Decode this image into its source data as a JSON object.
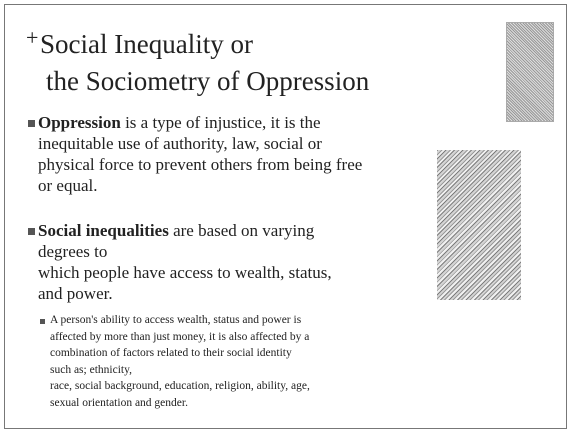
{
  "slide": {
    "marker": "+",
    "title_lines": [
      "Social Inequality or",
      "the Sociometry of Oppression"
    ],
    "bullets": [
      {
        "bold": "Oppression",
        "lines": [
          " is a type of injustice, it is the",
          "inequitable use of authority, law, social or",
          "physical force to prevent others from being free",
          "or equal."
        ]
      },
      {
        "bold": "Social inequalities",
        "lines": [
          " are based on varying",
          "degrees to",
          "which people have access to wealth, status,",
          "and power."
        ]
      }
    ],
    "sub_bullet_lines": [
      "A person's ability to access wealth, status and power is",
      "affected by more than just money, it is also affected by a",
      "combination of factors related to their social identity",
      "such as; ethnicity,",
      "race, social background, education, religion, ability, age,",
      "sexual orientation and gender."
    ]
  }
}
